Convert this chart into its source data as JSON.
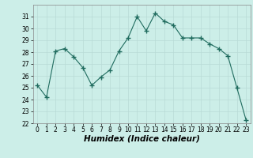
{
  "x": [
    0,
    1,
    2,
    3,
    4,
    5,
    6,
    7,
    8,
    9,
    10,
    11,
    12,
    13,
    14,
    15,
    16,
    17,
    18,
    19,
    20,
    21,
    22,
    23
  ],
  "y": [
    25.2,
    24.2,
    28.1,
    28.3,
    27.6,
    26.7,
    25.2,
    25.9,
    26.5,
    28.1,
    29.2,
    31.0,
    29.8,
    31.3,
    30.6,
    30.3,
    29.2,
    29.2,
    29.2,
    28.7,
    28.3,
    27.7,
    25.0,
    22.3
  ],
  "line_color": "#1f6b5e",
  "marker": "+",
  "marker_size": 4,
  "bg_color": "#cceee8",
  "grid_color": "#b8dbd6",
  "xlabel": "Humidex (Indice chaleur)",
  "ylim": [
    22,
    32
  ],
  "xlim": [
    -0.5,
    23.5
  ],
  "yticks": [
    22,
    23,
    24,
    25,
    26,
    27,
    28,
    29,
    30,
    31
  ],
  "xticks": [
    0,
    1,
    2,
    3,
    4,
    5,
    6,
    7,
    8,
    9,
    10,
    11,
    12,
    13,
    14,
    15,
    16,
    17,
    18,
    19,
    20,
    21,
    22,
    23
  ],
  "tick_fontsize": 5.5,
  "label_fontsize": 7.5
}
